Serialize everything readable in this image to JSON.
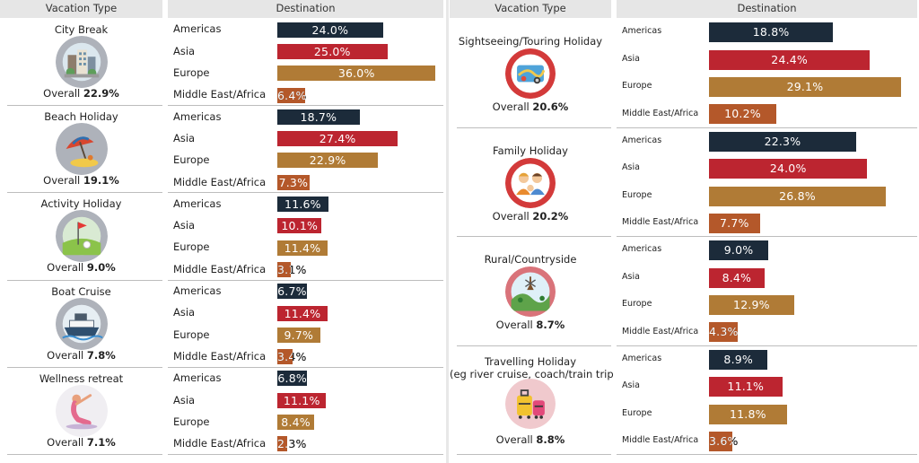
{
  "colors": {
    "Americas": "#1c2b3a",
    "Asia": "#bc2530",
    "Europe": "#b07b36",
    "Middle East/Africa": "#b4582a"
  },
  "left": {
    "header_type": "Vacation Type",
    "header_dest": "Destination"
  },
  "right": {
    "header_type": "Vacation Type",
    "header_dest": "Destination"
  },
  "overall_label": "Overall",
  "chart_data": {
    "type": "bar",
    "title": "",
    "categories": [
      "Americas",
      "Asia",
      "Europe",
      "Middle East/Africa"
    ],
    "groups": [
      {
        "name": "City Break",
        "overall": "22.9%",
        "icon": "city-icon",
        "values": [
          24.0,
          25.0,
          36.0,
          6.4
        ],
        "labels": [
          "24.0%",
          "25.0%",
          "36.0%",
          "6.4%"
        ]
      },
      {
        "name": "Beach Holiday",
        "overall": "19.1%",
        "icon": "beach-umbrella-icon",
        "values": [
          18.7,
          27.4,
          22.9,
          7.3
        ],
        "labels": [
          "18.7%",
          "27.4%",
          "22.9%",
          "7.3%"
        ]
      },
      {
        "name": "Activity Holiday",
        "overall": "9.0%",
        "icon": "golf-icon",
        "values": [
          11.6,
          10.1,
          11.4,
          3.1
        ],
        "labels": [
          "11.6%",
          "10.1%",
          "11.4%",
          "3.1%"
        ]
      },
      {
        "name": "Boat Cruise",
        "overall": "7.8%",
        "icon": "cruise-ship-icon",
        "values": [
          6.7,
          11.4,
          9.7,
          3.4
        ],
        "labels": [
          "6.7%",
          "11.4%",
          "9.7%",
          "3.4%"
        ]
      },
      {
        "name": "Wellness retreat",
        "overall": "7.1%",
        "icon": "yoga-icon",
        "values": [
          6.8,
          11.1,
          8.4,
          2.3
        ],
        "labels": [
          "6.8%",
          "11.1%",
          "8.4%",
          "2.3%"
        ]
      },
      {
        "name": "Sightseeing/Touring Holiday",
        "overall": "20.6%",
        "icon": "tour-map-icon",
        "values": [
          18.8,
          24.4,
          29.1,
          10.2
        ],
        "labels": [
          "18.8%",
          "24.4%",
          "29.1%",
          "10.2%"
        ]
      },
      {
        "name": "Family Holiday",
        "overall": "20.2%",
        "icon": "family-icon",
        "values": [
          22.3,
          24.0,
          26.8,
          7.7
        ],
        "labels": [
          "22.3%",
          "24.0%",
          "26.8%",
          "7.7%"
        ]
      },
      {
        "name": "Rural/Countryside",
        "overall": "8.7%",
        "icon": "countryside-icon",
        "values": [
          9.0,
          8.4,
          12.9,
          4.3
        ],
        "labels": [
          "9.0%",
          "8.4%",
          "12.9%",
          "4.3%"
        ]
      },
      {
        "name": "Travelling Holiday (eg river cruise, coach/train trip",
        "name_line1": "Travelling Holiday",
        "name_line2": "(eg river cruise, coach/train trip",
        "overall": "8.8%",
        "icon": "luggage-icon",
        "values": [
          8.9,
          11.1,
          11.8,
          3.6
        ],
        "labels": [
          "8.9%",
          "11.1%",
          "11.8%",
          "3.6%"
        ]
      }
    ]
  }
}
